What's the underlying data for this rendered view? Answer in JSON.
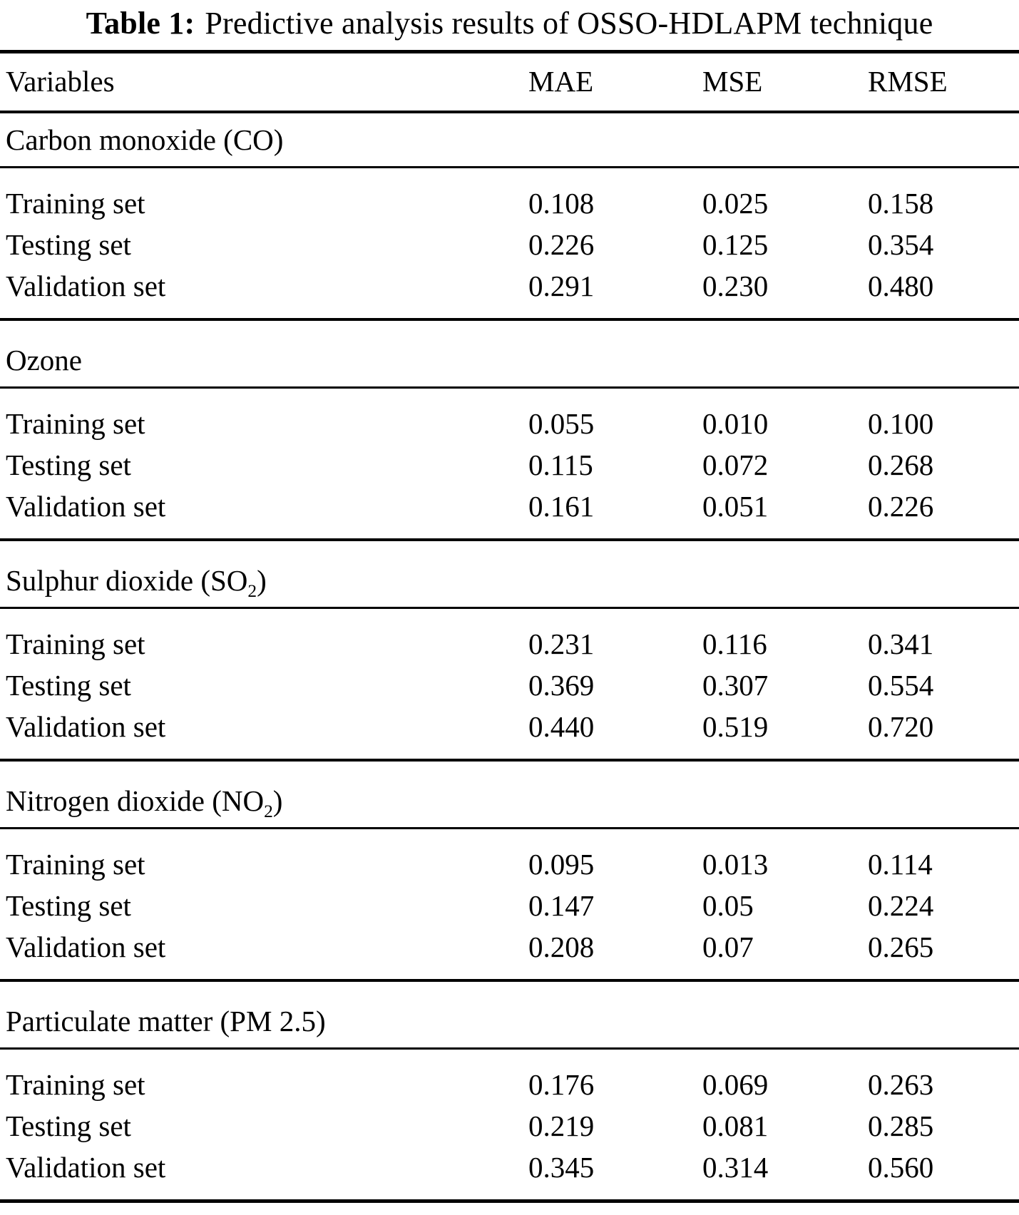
{
  "title": {
    "label": "Table 1:",
    "text": "Predictive analysis results of OSSO-HDLAPM technique"
  },
  "table": {
    "columns": [
      "Variables",
      "MAE",
      "MSE",
      "RMSE"
    ],
    "sections": [
      {
        "label": "Carbon monoxide (CO)",
        "label_pre": "Carbon monoxide (CO)",
        "label_sub": "",
        "label_post": "",
        "rows": [
          {
            "variable": "Training set",
            "mae": "0.108",
            "mse": "0.025",
            "rmse": "0.158"
          },
          {
            "variable": "Testing set",
            "mae": "0.226",
            "mse": "0.125",
            "rmse": "0.354"
          },
          {
            "variable": "Validation set",
            "mae": "0.291",
            "mse": "0.230",
            "rmse": "0.480"
          }
        ]
      },
      {
        "label": "Ozone",
        "label_pre": "Ozone",
        "label_sub": "",
        "label_post": "",
        "rows": [
          {
            "variable": "Training set",
            "mae": "0.055",
            "mse": "0.010",
            "rmse": "0.100"
          },
          {
            "variable": "Testing set",
            "mae": "0.115",
            "mse": "0.072",
            "rmse": "0.268"
          },
          {
            "variable": "Validation set",
            "mae": "0.161",
            "mse": "0.051",
            "rmse": "0.226"
          }
        ]
      },
      {
        "label": "Sulphur dioxide (SO2)",
        "label_pre": "Sulphur dioxide (SO",
        "label_sub": "2",
        "label_post": ")",
        "rows": [
          {
            "variable": "Training set",
            "mae": "0.231",
            "mse": "0.116",
            "rmse": "0.341"
          },
          {
            "variable": "Testing set",
            "mae": "0.369",
            "mse": "0.307",
            "rmse": "0.554"
          },
          {
            "variable": "Validation set",
            "mae": "0.440",
            "mse": "0.519",
            "rmse": "0.720"
          }
        ]
      },
      {
        "label": "Nitrogen dioxide (NO2)",
        "label_pre": "Nitrogen dioxide (NO",
        "label_sub": "2",
        "label_post": ")",
        "rows": [
          {
            "variable": "Training set",
            "mae": "0.095",
            "mse": "0.013",
            "rmse": "0.114"
          },
          {
            "variable": "Testing set",
            "mae": "0.147",
            "mse": "0.05",
            "rmse": "0.224"
          },
          {
            "variable": "Validation set",
            "mae": "0.208",
            "mse": "0.07",
            "rmse": "0.265"
          }
        ]
      },
      {
        "label": "Particulate matter (PM 2.5)",
        "label_pre": "Particulate matter (PM 2.5)",
        "label_sub": "",
        "label_post": "",
        "rows": [
          {
            "variable": "Training set",
            "mae": "0.176",
            "mse": "0.069",
            "rmse": "0.263"
          },
          {
            "variable": "Testing set",
            "mae": "0.219",
            "mse": "0.081",
            "rmse": "0.285"
          },
          {
            "variable": "Validation set",
            "mae": "0.345",
            "mse": "0.314",
            "rmse": "0.560"
          }
        ]
      }
    ]
  }
}
